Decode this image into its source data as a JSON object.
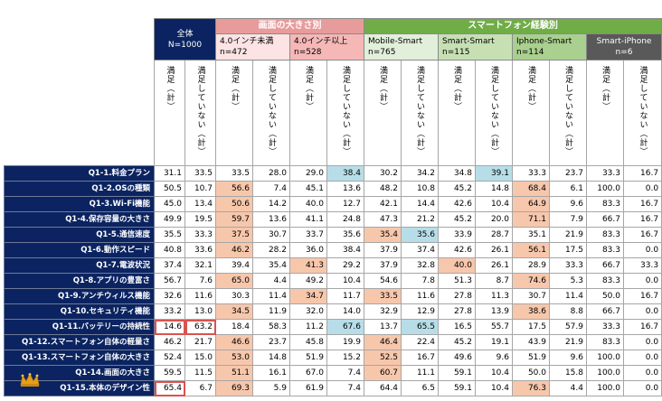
{
  "headers": {
    "overall": [
      "全体",
      "N=1000"
    ],
    "screen_group": "画面の大きさ別",
    "smartphone_group": "スマートフォン経験別",
    "subgroups": [
      {
        "name": "4.0インチ未満",
        "n": "n=472"
      },
      {
        "name": "4.0インチ以上",
        "n": "n=528"
      },
      {
        "name": "Mobile-Smart",
        "n": "n=765"
      },
      {
        "name": "Smart-Smart",
        "n": "n=115"
      },
      {
        "name": "Iphone-Smart",
        "n": "n=114"
      },
      {
        "name": "Smart-iPhone",
        "n": "n=6"
      }
    ],
    "col_satisfied": "満足（計）",
    "col_unsatisfied": "満足していない（計）"
  },
  "colors": {
    "navy": "#0b2461",
    "screen_group": "#e89b9b",
    "screen_sub1": "#fde4e4",
    "screen_sub2": "#f6b7b7",
    "smart_group": "#70ad47",
    "smart_sub_light": "#e2efda",
    "smart_sub_dark": "#a9d08e",
    "smart_iphone": "#595959",
    "highlight_high": "#f7c7ac",
    "highlight_low": "#b7dee8"
  },
  "rows": [
    {
      "label": "Q1-1.料金プラン",
      "values": [
        "31.1",
        "33.5",
        "33.5",
        "28.0",
        "29.0",
        "38.4",
        "30.2",
        "34.2",
        "34.8",
        "39.1",
        "33.3",
        "23.7",
        "33.3",
        "16.7"
      ],
      "hl": {
        "5": "lo",
        "9": "lo"
      }
    },
    {
      "label": "Q1-2.OSの種類",
      "values": [
        "50.5",
        "10.7",
        "56.6",
        "7.4",
        "45.1",
        "13.6",
        "48.2",
        "10.8",
        "45.2",
        "14.8",
        "68.4",
        "6.1",
        "100.0",
        "0.0"
      ],
      "hl": {
        "2": "hi",
        "10": "hi"
      }
    },
    {
      "label": "Q1-3.Wi-Fi機能",
      "values": [
        "45.0",
        "13.4",
        "50.6",
        "14.2",
        "40.0",
        "12.7",
        "42.1",
        "14.4",
        "42.6",
        "10.4",
        "64.9",
        "9.6",
        "83.3",
        "16.7"
      ],
      "hl": {
        "2": "hi",
        "10": "hi"
      }
    },
    {
      "label": "Q1-4.保存容量の大きさ",
      "values": [
        "49.9",
        "19.5",
        "59.7",
        "13.6",
        "41.1",
        "24.8",
        "47.3",
        "21.2",
        "45.2",
        "20.0",
        "71.1",
        "7.9",
        "66.7",
        "16.7"
      ],
      "hl": {
        "2": "hi",
        "10": "hi"
      }
    },
    {
      "label": "Q1-5.通信速度",
      "values": [
        "35.5",
        "33.3",
        "37.5",
        "30.7",
        "33.7",
        "35.6",
        "35.4",
        "35.6",
        "33.9",
        "28.7",
        "35.1",
        "21.9",
        "83.3",
        "16.7"
      ],
      "hl": {
        "2": "hi",
        "6": "hi",
        "7": "lo"
      }
    },
    {
      "label": "Q1-6.動作スピード",
      "values": [
        "40.8",
        "33.6",
        "46.2",
        "28.2",
        "36.0",
        "38.4",
        "37.9",
        "37.4",
        "42.6",
        "26.1",
        "56.1",
        "17.5",
        "83.3",
        "0.0"
      ],
      "hl": {
        "2": "hi",
        "10": "hi"
      }
    },
    {
      "label": "Q1-7.電波状況",
      "values": [
        "37.4",
        "32.1",
        "39.4",
        "35.4",
        "41.3",
        "29.2",
        "37.9",
        "32.8",
        "40.0",
        "26.1",
        "28.9",
        "33.3",
        "66.7",
        "33.3"
      ],
      "hl": {
        "4": "hi",
        "8": "hi"
      }
    },
    {
      "label": "Q1-8.アプリの豊富さ",
      "values": [
        "56.7",
        "7.6",
        "65.0",
        "4.4",
        "49.2",
        "10.4",
        "54.6",
        "7.8",
        "51.3",
        "8.7",
        "74.6",
        "5.3",
        "83.3",
        "0.0"
      ],
      "hl": {
        "2": "hi",
        "10": "hi"
      }
    },
    {
      "label": "Q1-9.アンチウィルス機能",
      "values": [
        "32.6",
        "11.6",
        "30.3",
        "11.4",
        "34.7",
        "11.7",
        "33.5",
        "11.6",
        "27.8",
        "11.3",
        "30.7",
        "11.4",
        "50.0",
        "16.7"
      ],
      "hl": {
        "4": "hi",
        "6": "hi"
      }
    },
    {
      "label": "Q1-10.セキュリティ機能",
      "values": [
        "33.2",
        "13.0",
        "34.5",
        "11.9",
        "32.0",
        "14.0",
        "32.9",
        "12.9",
        "27.8",
        "13.9",
        "38.6",
        "8.8",
        "66.7",
        "0.0"
      ],
      "hl": {
        "2": "hi",
        "10": "hi"
      }
    },
    {
      "label": "Q1-11.バッテリーの持続性",
      "values": [
        "14.6",
        "63.2",
        "18.4",
        "58.3",
        "11.2",
        "67.6",
        "13.7",
        "65.5",
        "16.5",
        "55.7",
        "17.5",
        "57.9",
        "33.3",
        "16.7"
      ],
      "hl": {
        "5": "lo",
        "7": "lo"
      },
      "boxed": [
        0,
        1
      ]
    },
    {
      "label": "Q1-12.スマートフォン自体の軽量さ",
      "values": [
        "46.2",
        "21.7",
        "46.6",
        "23.7",
        "45.8",
        "19.9",
        "46.4",
        "22.4",
        "45.2",
        "19.1",
        "43.9",
        "21.9",
        "83.3",
        "0.0"
      ],
      "hl": {
        "2": "hi",
        "6": "hi"
      }
    },
    {
      "label": "Q1-13.スマートフォン自体の大きさ",
      "values": [
        "52.4",
        "15.0",
        "53.0",
        "14.8",
        "51.9",
        "15.2",
        "52.5",
        "16.7",
        "49.6",
        "9.6",
        "51.9",
        "9.6",
        "100.0",
        "0.0"
      ],
      "hl": {
        "2": "hi",
        "6": "hi"
      }
    },
    {
      "label": "Q1-14.画面の大きさ",
      "values": [
        "59.5",
        "11.5",
        "51.1",
        "16.1",
        "67.0",
        "7.4",
        "60.7",
        "11.1",
        "59.1",
        "10.4",
        "50.0",
        "15.8",
        "100.0",
        "0.0"
      ],
      "hl": {
        "2": "hi",
        "6": "hi"
      }
    },
    {
      "label": "Q1-15.本体のデザイン性",
      "values": [
        "65.4",
        "6.7",
        "69.3",
        "5.9",
        "61.9",
        "7.4",
        "64.4",
        "6.5",
        "59.1",
        "10.4",
        "76.3",
        "4.4",
        "100.0",
        "0.0"
      ],
      "hl": {
        "2": "hi",
        "10": "hi"
      },
      "boxed": [
        0
      ]
    }
  ]
}
